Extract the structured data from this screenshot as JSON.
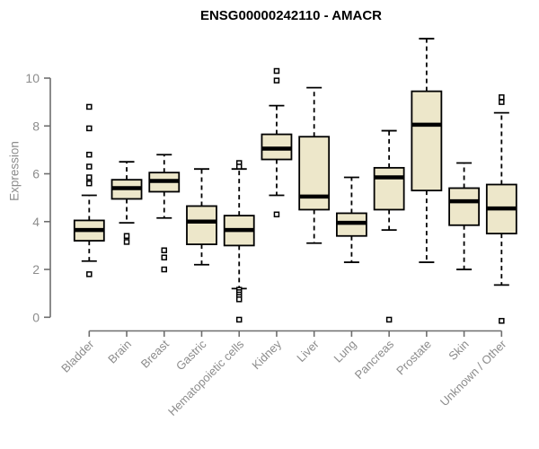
{
  "chart_data": {
    "type": "boxplot",
    "title": "ENSG00000242110 - AMACR",
    "ylabel": "Expression",
    "xlabel": "",
    "yticks": [
      0,
      2,
      4,
      6,
      8,
      10
    ],
    "ylim": [
      0,
      11.8
    ],
    "grid": false,
    "legend": "none",
    "categories": [
      "Bladder",
      "Brain",
      "Breast",
      "Gastric",
      "Hematopoietic cells",
      "Kidney",
      "Liver",
      "Lung",
      "Pancreas",
      "Prostate",
      "Skin",
      "Unknown / Other"
    ],
    "boxes": [
      {
        "category": "Bladder",
        "whisker_low": 2.35,
        "q1": 3.2,
        "median": 3.65,
        "q3": 4.05,
        "whisker_high": 5.1,
        "outliers": [
          8.8,
          7.9,
          6.8,
          6.3,
          5.85,
          5.6,
          1.8
        ]
      },
      {
        "category": "Brain",
        "whisker_low": 3.95,
        "q1": 4.95,
        "median": 5.4,
        "q3": 5.75,
        "whisker_high": 6.5,
        "outliers": [
          3.4,
          3.15
        ]
      },
      {
        "category": "Breast",
        "whisker_low": 4.15,
        "q1": 5.25,
        "median": 5.7,
        "q3": 6.05,
        "whisker_high": 6.8,
        "outliers": [
          2.8,
          2.5,
          2.0
        ]
      },
      {
        "category": "Gastric",
        "whisker_low": 2.2,
        "q1": 3.05,
        "median": 4.0,
        "q3": 4.65,
        "whisker_high": 6.2,
        "outliers": []
      },
      {
        "category": "Hematopoietic cells",
        "whisker_low": 1.2,
        "q1": 3.0,
        "median": 3.65,
        "q3": 4.25,
        "whisker_high": 6.2,
        "outliers": [
          6.45,
          6.3,
          1.15,
          1.05,
          0.95,
          0.85,
          0.75,
          -0.1
        ]
      },
      {
        "category": "Kidney",
        "whisker_low": 5.1,
        "q1": 6.6,
        "median": 7.05,
        "q3": 7.65,
        "whisker_high": 8.85,
        "outliers": [
          10.3,
          9.9,
          4.3
        ]
      },
      {
        "category": "Liver",
        "whisker_low": 3.1,
        "q1": 4.5,
        "median": 5.05,
        "q3": 7.55,
        "whisker_high": 9.6,
        "outliers": []
      },
      {
        "category": "Lung",
        "whisker_low": 2.3,
        "q1": 3.4,
        "median": 3.95,
        "q3": 4.35,
        "whisker_high": 5.85,
        "outliers": []
      },
      {
        "category": "Pancreas",
        "whisker_low": 3.65,
        "q1": 4.5,
        "median": 5.85,
        "q3": 6.25,
        "whisker_high": 7.8,
        "outliers": [
          -0.1
        ]
      },
      {
        "category": "Prostate",
        "whisker_low": 2.3,
        "q1": 5.3,
        "median": 8.05,
        "q3": 9.45,
        "whisker_high": 11.65,
        "outliers": []
      },
      {
        "category": "Skin",
        "whisker_low": 2.0,
        "q1": 3.85,
        "median": 4.85,
        "q3": 5.4,
        "whisker_high": 6.45,
        "outliers": []
      },
      {
        "category": "Unknown / Other",
        "whisker_low": 1.35,
        "q1": 3.5,
        "median": 4.55,
        "q3": 5.55,
        "whisker_high": 8.55,
        "outliers": [
          9.2,
          9.0,
          -0.15
        ]
      }
    ],
    "colors": {
      "box_fill": "#EDE7CA",
      "box_stroke": "#000000",
      "median_line": "#000000",
      "outlier_fill": "#FFFFFF",
      "axis_line": "#6E6E6E",
      "tick_text": "#8C8C8C",
      "title_text": "#000000",
      "background": "#FFFFFF"
    }
  }
}
